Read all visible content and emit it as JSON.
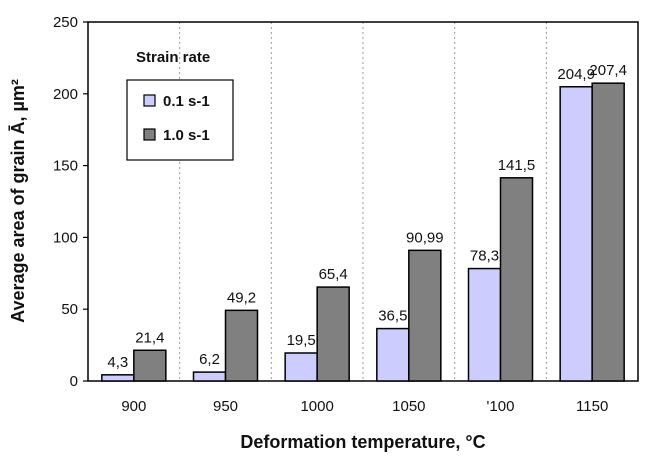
{
  "chart_data": {
    "type": "bar",
    "title": "",
    "xlabel": "Deformation temperature, °C",
    "ylabel": "Average area of grain Ā, µm²",
    "categories": [
      "900",
      "950",
      "1000",
      "1050",
      "'100",
      "1150"
    ],
    "ylim": [
      0,
      250
    ],
    "yticks": [
      0,
      50,
      100,
      150,
      200,
      250
    ],
    "grid": "vertical dashed",
    "legend": {
      "title": "Strain rate",
      "placement": "top-left"
    },
    "series": [
      {
        "name": "0.1 s-1",
        "color": "#ccccff",
        "values": [
          4.3,
          6.2,
          19.5,
          36.5,
          78.3,
          204.9
        ],
        "labels": [
          "4,3",
          "6,2",
          "19,5",
          "36,5",
          "78,3",
          "204,9"
        ]
      },
      {
        "name": "1.0 s-1",
        "color": "#808080",
        "values": [
          21.4,
          49.2,
          65.4,
          90.99,
          141.5,
          207.4
        ],
        "labels": [
          "21,4",
          "49,2",
          "65,4",
          "90,99",
          "141,5",
          "207,4"
        ]
      }
    ]
  }
}
